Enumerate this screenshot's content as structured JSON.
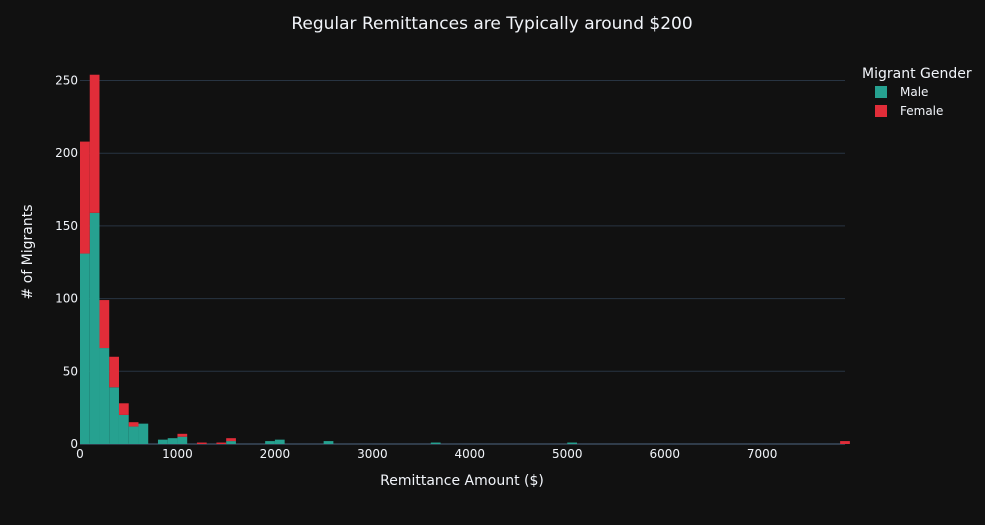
{
  "chart_data": {
    "type": "bar",
    "barmode": "stack",
    "title": "Regular Remittances are Typically around $200",
    "xlabel": "Remittance Amount ($)",
    "ylabel": "# of Migrants",
    "xlim": [
      0,
      7850
    ],
    "ylim": [
      0,
      260
    ],
    "x_ticks": [
      0,
      1000,
      2000,
      3000,
      4000,
      5000,
      6000,
      7000
    ],
    "y_ticks": [
      0,
      50,
      100,
      150,
      200,
      250
    ],
    "grid": true,
    "bin_width": 100,
    "legend": {
      "title": "Migrant Gender",
      "placement": "top-right outside"
    },
    "series": [
      {
        "name": "Male",
        "color": "#26a190",
        "bins": [
          {
            "x0": 0,
            "x1": 100,
            "count": 131
          },
          {
            "x0": 100,
            "x1": 200,
            "count": 159
          },
          {
            "x0": 200,
            "x1": 300,
            "count": 66
          },
          {
            "x0": 300,
            "x1": 400,
            "count": 39
          },
          {
            "x0": 400,
            "x1": 500,
            "count": 20
          },
          {
            "x0": 500,
            "x1": 600,
            "count": 12
          },
          {
            "x0": 600,
            "x1": 700,
            "count": 14
          },
          {
            "x0": 800,
            "x1": 900,
            "count": 3
          },
          {
            "x0": 900,
            "x1": 1000,
            "count": 4
          },
          {
            "x0": 1000,
            "x1": 1100,
            "count": 5
          },
          {
            "x0": 1500,
            "x1": 1600,
            "count": 2
          },
          {
            "x0": 1900,
            "x1": 2000,
            "count": 2
          },
          {
            "x0": 2000,
            "x1": 2100,
            "count": 3
          },
          {
            "x0": 2500,
            "x1": 2600,
            "count": 2
          },
          {
            "x0": 3600,
            "x1": 3700,
            "count": 1
          },
          {
            "x0": 5000,
            "x1": 5100,
            "count": 1
          }
        ]
      },
      {
        "name": "Female",
        "color": "#e12d39",
        "bins": [
          {
            "x0": 0,
            "x1": 100,
            "count": 77
          },
          {
            "x0": 100,
            "x1": 200,
            "count": 95
          },
          {
            "x0": 200,
            "x1": 300,
            "count": 33
          },
          {
            "x0": 300,
            "x1": 400,
            "count": 21
          },
          {
            "x0": 400,
            "x1": 500,
            "count": 8
          },
          {
            "x0": 500,
            "x1": 600,
            "count": 3
          },
          {
            "x0": 1000,
            "x1": 1100,
            "count": 2
          },
          {
            "x0": 1200,
            "x1": 1300,
            "count": 1
          },
          {
            "x0": 1400,
            "x1": 1500,
            "count": 1
          },
          {
            "x0": 1500,
            "x1": 1600,
            "count": 2
          },
          {
            "x0": 7800,
            "x1": 7900,
            "count": 2
          }
        ]
      }
    ]
  }
}
